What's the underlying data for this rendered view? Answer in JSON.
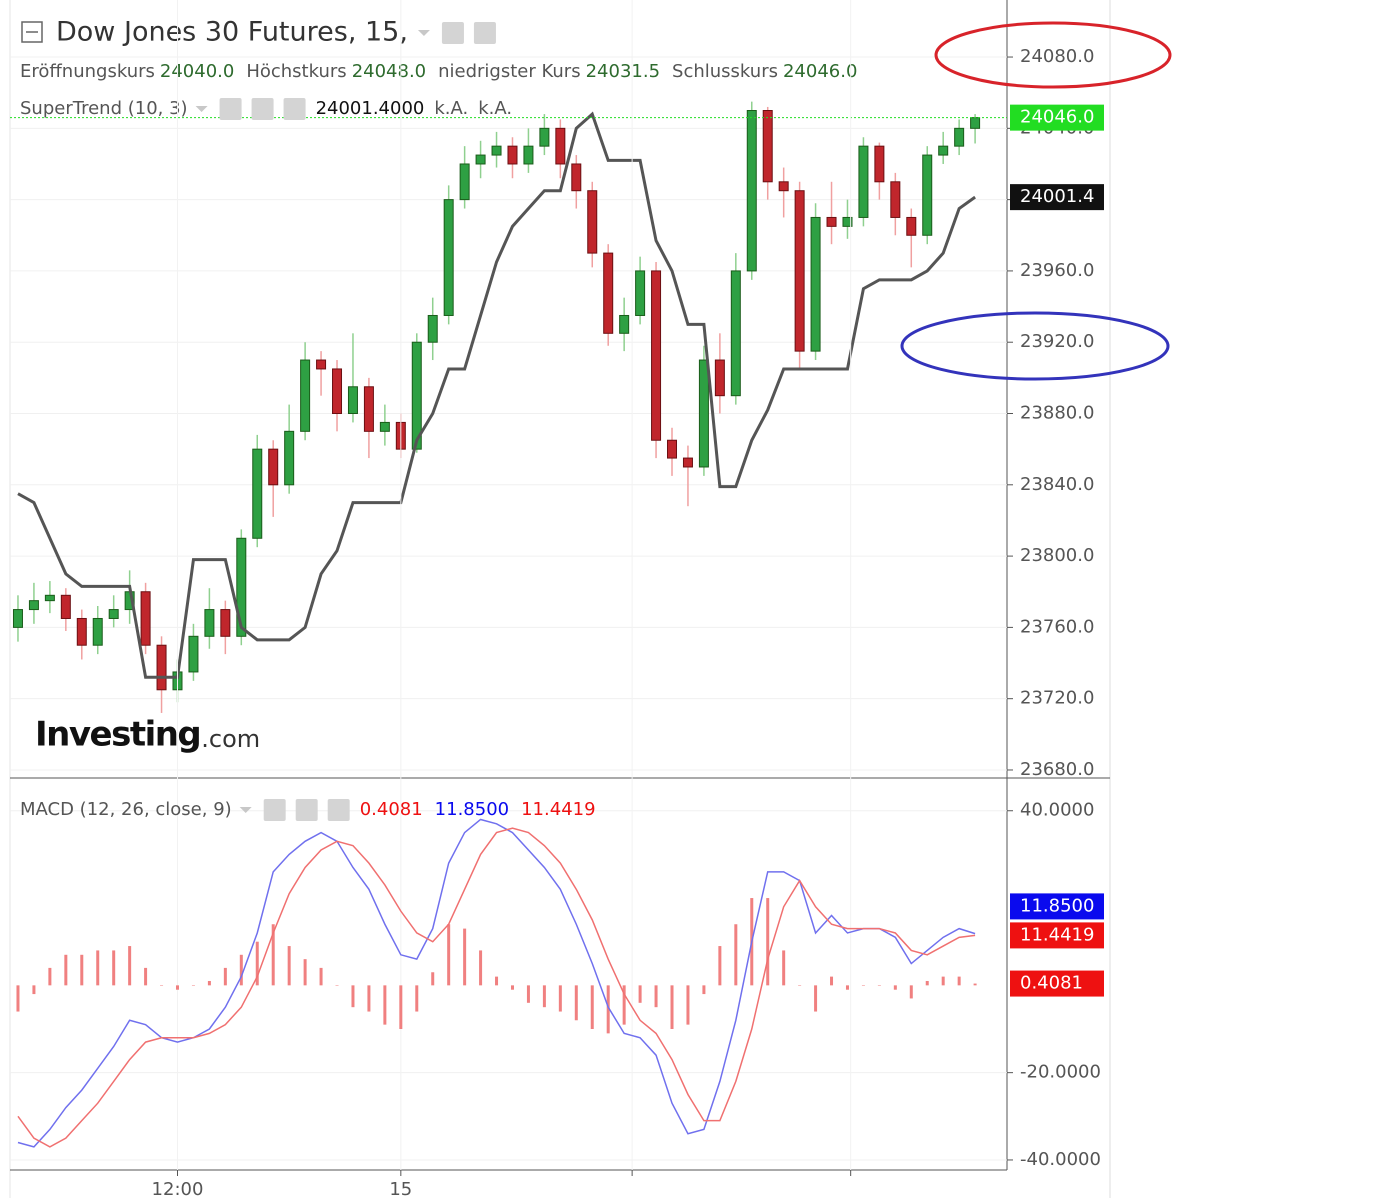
{
  "chart_data": [
    {
      "type": "candlestick",
      "title": "Dow Jones 30 Futures, 15,",
      "ohlc_names": [
        "Eröffnungskurs",
        "Höchstkurs",
        "niedrigster Kurs",
        "Schlusskurs"
      ],
      "ohlc_labels": [
        "24040.0",
        "24048.0",
        "24031.5",
        "24046.0"
      ],
      "watermark": [
        "Investing",
        ".com"
      ],
      "x": [
        0,
        1,
        2,
        3,
        4,
        5,
        6,
        7,
        8,
        9,
        10,
        11,
        12,
        13,
        14,
        15,
        16,
        17,
        18,
        19,
        20,
        21,
        22,
        23,
        24,
        25,
        26,
        27,
        28,
        29,
        30,
        31,
        32,
        33,
        34,
        35,
        36,
        37,
        38,
        39,
        40,
        41,
        42,
        43,
        44,
        45,
        46,
        47,
        48,
        49,
        50,
        51,
        52,
        53,
        54,
        55,
        56,
        57,
        58,
        59,
        60
      ],
      "open": [
        23760,
        23770,
        23775,
        23778,
        23765,
        23750,
        23765,
        23770,
        23780,
        23750,
        23725,
        23735,
        23755,
        23770,
        23755,
        23810,
        23860,
        23840,
        23870,
        23910,
        23905,
        23880,
        23895,
        23870,
        23875,
        23860,
        23920,
        23935,
        24000,
        24020,
        24025,
        24030,
        24020,
        24030,
        24040,
        24020,
        24005,
        23970,
        23925,
        23935,
        23960,
        23865,
        23855,
        23850,
        23910,
        23890,
        23960,
        24050,
        24010,
        24005,
        23915,
        23990,
        23985,
        23990,
        24030,
        24010,
        23990,
        23980,
        24025,
        24030,
        24040
      ],
      "high": [
        23778,
        23785,
        23786,
        23782,
        23770,
        23772,
        23778,
        23792,
        23785,
        23755,
        23742,
        23762,
        23782,
        23775,
        23815,
        23868,
        23865,
        23885,
        23920,
        23915,
        23910,
        23925,
        23900,
        23885,
        23880,
        23925,
        23945,
        24008,
        24030,
        24033,
        24038,
        24035,
        24040,
        24048,
        24045,
        24025,
        24010,
        23975,
        23945,
        23968,
        23965,
        23872,
        23862,
        23918,
        23925,
        23970,
        24055,
        24052,
        24018,
        24010,
        23998,
        24010,
        24000,
        24035,
        24032,
        24015,
        23995,
        24030,
        24038,
        24045,
        24048
      ],
      "low": [
        23752,
        23762,
        23768,
        23758,
        23742,
        23745,
        23760,
        23762,
        23745,
        23712,
        23718,
        23730,
        23748,
        23745,
        23750,
        23805,
        23822,
        23835,
        23865,
        23890,
        23870,
        23875,
        23855,
        23862,
        23855,
        23858,
        23910,
        23930,
        23995,
        24012,
        24018,
        24012,
        24015,
        24025,
        24012,
        23995,
        23962,
        23918,
        23915,
        23930,
        23855,
        23845,
        23828,
        23845,
        23880,
        23885,
        23955,
        24000,
        23990,
        23905,
        23910,
        23975,
        23978,
        23985,
        24000,
        23980,
        23962,
        23975,
        24020,
        24025,
        24031.5
      ],
      "close": [
        23770,
        23775,
        23778,
        23765,
        23750,
        23765,
        23770,
        23780,
        23750,
        23725,
        23735,
        23755,
        23770,
        23755,
        23810,
        23860,
        23840,
        23870,
        23910,
        23905,
        23880,
        23895,
        23870,
        23875,
        23860,
        23920,
        23935,
        24000,
        24020,
        24025,
        24030,
        24020,
        24030,
        24040,
        24020,
        24005,
        23970,
        23925,
        23935,
        23960,
        23865,
        23855,
        23850,
        23910,
        23890,
        23960,
        24050,
        24010,
        24005,
        23915,
        23990,
        23985,
        23990,
        24030,
        24010,
        23990,
        23980,
        24025,
        24030,
        24040,
        24046
      ],
      "up_color": "#2ea043",
      "down_color": "#c0262c",
      "last_price_color": "#22dd22",
      "series": [
        {
          "name": "SuperTrend (10, 3)",
          "color": "#555555",
          "values": [
            23835,
            23830,
            23810,
            23790,
            23783,
            23783,
            23783,
            23783,
            23732,
            23732,
            23732,
            23798,
            23798,
            23798,
            23760,
            23753,
            23753,
            23753,
            23760,
            23790,
            23803,
            23830,
            23830,
            23830,
            23830,
            23865,
            23880,
            23905,
            23905,
            23935,
            23965,
            23985,
            23995,
            24005,
            24005,
            24040,
            24048,
            24022,
            24022,
            24022,
            23977,
            23960,
            23930,
            23930,
            23839,
            23839,
            23865,
            23882,
            23905,
            23905,
            23905,
            23905,
            23905,
            23950,
            23955,
            23955,
            23955,
            23960,
            23970,
            23995,
            24001.4
          ],
          "legend_label": "24001.4000",
          "legend_extra": [
            "k.A.",
            "k.A."
          ],
          "value_label": "24001.4"
        }
      ],
      "xlim": [
        -0.5,
        62
      ],
      "ylim": [
        23675.5,
        24112
      ],
      "yticks": [
        {
          "value": 24080,
          "label": "24080.0"
        },
        {
          "value": 24040,
          "label": "24040.0"
        },
        {
          "value": 24000,
          "label": "24000.0"
        },
        {
          "value": 23960,
          "label": "23960.0"
        },
        {
          "value": 23920,
          "label": "23920.0"
        },
        {
          "value": 23880,
          "label": "23880.0"
        },
        {
          "value": 23840,
          "label": "23840.0"
        },
        {
          "value": 23800,
          "label": "23800.0"
        },
        {
          "value": 23760,
          "label": "23760.0"
        },
        {
          "value": 23720,
          "label": "23720.0"
        },
        {
          "value": 23680,
          "label": "23680.0"
        }
      ],
      "grid": true
    },
    {
      "type": "macd",
      "title": "MACD (12, 26, close, 9)",
      "x": [
        0,
        1,
        2,
        3,
        4,
        5,
        6,
        7,
        8,
        9,
        10,
        11,
        12,
        13,
        14,
        15,
        16,
        17,
        18,
        19,
        20,
        21,
        22,
        23,
        24,
        25,
        26,
        27,
        28,
        29,
        30,
        31,
        32,
        33,
        34,
        35,
        36,
        37,
        38,
        39,
        40,
        41,
        42,
        43,
        44,
        45,
        46,
        47,
        48,
        49,
        50,
        51,
        52,
        53,
        54,
        55,
        56,
        57,
        58,
        59,
        60
      ],
      "series": [
        {
          "kind": "histogram",
          "color": "#f08080",
          "label_color": "#ee1111",
          "values": [
            -6,
            -2,
            4,
            7,
            7,
            8,
            8,
            9,
            4,
            0,
            -1,
            0,
            1,
            4,
            7,
            10,
            14,
            9,
            6,
            4,
            0,
            -5,
            -6,
            -9,
            -10,
            -6,
            3,
            14,
            13,
            8,
            2,
            -1,
            -4,
            -5,
            -6,
            -8,
            -10,
            -11,
            -9,
            -4,
            -5,
            -10,
            -9,
            -2,
            9,
            14,
            20,
            20,
            8,
            0,
            -6,
            2,
            -1,
            0,
            0,
            -1,
            -3,
            1,
            2,
            2,
            0.4081
          ],
          "value_label": "0.4081"
        },
        {
          "kind": "line",
          "color": "#7070ee",
          "label_color": "#0a0aee",
          "values": [
            -36,
            -37,
            -33,
            -28,
            -24,
            -19,
            -14,
            -8,
            -9,
            -12,
            -13,
            -12,
            -10,
            -5,
            2,
            12,
            26,
            30,
            33,
            35,
            33,
            27,
            22,
            14,
            7,
            6,
            13,
            28,
            35,
            38,
            37,
            35,
            31,
            27,
            22,
            14,
            5,
            -5,
            -11,
            -12,
            -16,
            -27,
            -34,
            -33,
            -22,
            -8,
            10,
            26,
            26,
            24,
            12,
            16,
            12,
            13,
            13,
            11,
            5,
            8,
            11,
            13,
            11.85
          ],
          "value_label": "11.8500"
        },
        {
          "kind": "line",
          "color": "#f07070",
          "label_color": "#ee1111",
          "values": [
            -30,
            -35,
            -37,
            -35,
            -31,
            -27,
            -22,
            -17,
            -13,
            -12,
            -12,
            -12,
            -11,
            -9,
            -5,
            2,
            12,
            21,
            27,
            31,
            33,
            32,
            28,
            23,
            17,
            12,
            10,
            14,
            22,
            30,
            35,
            36,
            35,
            32,
            28,
            22,
            15,
            6,
            -2,
            -8,
            -11,
            -17,
            -25,
            -31,
            -31,
            -22,
            -10,
            6,
            18,
            24,
            18,
            14,
            13,
            13,
            13,
            12,
            8,
            7,
            9,
            11,
            11.4419
          ],
          "value_label": "11.4419"
        }
      ],
      "xlim": [
        -0.5,
        62
      ],
      "xticks": [
        {
          "value": 10,
          "label": "12:00"
        },
        {
          "value": 24,
          "label": "15"
        }
      ],
      "xminor_ticks": [
        38.5,
        52.2
      ],
      "ylim": [
        -42.3,
        47.5
      ],
      "yticks": [
        {
          "value": 40,
          "label": "40.0000"
        },
        {
          "value": -20,
          "label": "-20.0000"
        },
        {
          "value": -40,
          "label": "-40.0000"
        }
      ],
      "grid": true
    }
  ]
}
